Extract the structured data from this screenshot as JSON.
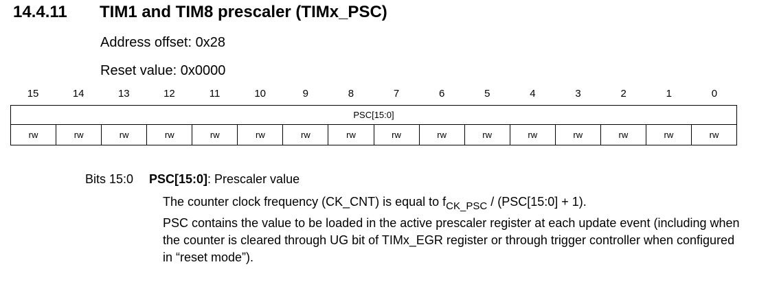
{
  "section": {
    "number": "14.4.11",
    "title": "TIM1 and TIM8 prescaler (TIMx_PSC)"
  },
  "address_offset": "Address offset: 0x28",
  "reset_value": "Reset value: 0x0000",
  "register": {
    "bit_numbers": [
      "15",
      "14",
      "13",
      "12",
      "11",
      "10",
      "9",
      "8",
      "7",
      "6",
      "5",
      "4",
      "3",
      "2",
      "1",
      "0"
    ],
    "field_name": "PSC[15:0]",
    "access": [
      "rw",
      "rw",
      "rw",
      "rw",
      "rw",
      "rw",
      "rw",
      "rw",
      "rw",
      "rw",
      "rw",
      "rw",
      "rw",
      "rw",
      "rw",
      "rw"
    ]
  },
  "description": {
    "bits_label": "Bits 15:0",
    "field_name": "PSC[15:0]",
    "field_title": ": Prescaler value",
    "line1_before": "The counter clock frequency (CK_CNT) is equal to f",
    "line1_sub": "CK_PSC",
    "line1_after": " / (PSC[15:0] + 1).",
    "para2": "PSC contains the value to be loaded in the active prescaler register at each update event (including when the counter is cleared through UG bit of TIMx_EGR register or through trigger controller when configured in “reset mode”)."
  }
}
